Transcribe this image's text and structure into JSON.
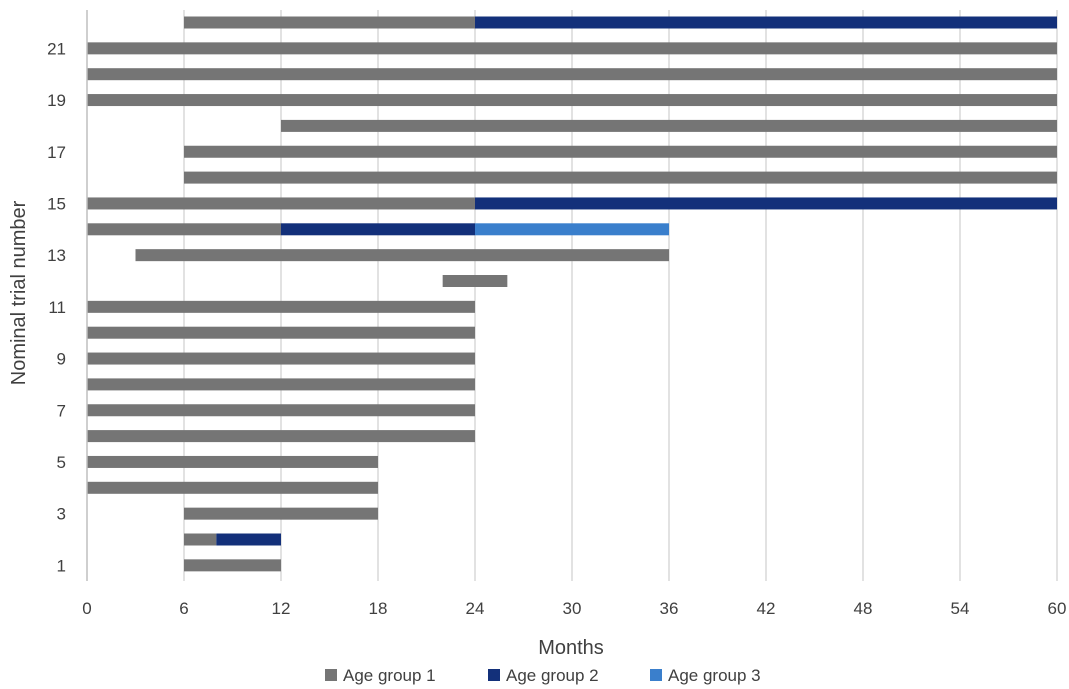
{
  "chart_data": {
    "type": "bar",
    "orientation": "horizontal-stacked-range",
    "xlabel": "Months",
    "ylabel": "Nominal trial number",
    "xlim": [
      0,
      60
    ],
    "xticks": [
      0,
      6,
      12,
      18,
      24,
      30,
      36,
      42,
      48,
      54,
      60
    ],
    "ylim": [
      1,
      22
    ],
    "yticks": [
      1,
      3,
      5,
      7,
      9,
      11,
      13,
      15,
      17,
      19,
      21
    ],
    "grid": "vertical",
    "legend_position": "bottom",
    "series": [
      {
        "name": "Age group 1",
        "color": "#757575"
      },
      {
        "name": "Age group 2",
        "color": "#13307a"
      },
      {
        "name": "Age group 3",
        "color": "#3a7fcc"
      }
    ],
    "trials": [
      {
        "trial": 1,
        "segments": [
          {
            "group": 0,
            "start": 6,
            "end": 12
          }
        ]
      },
      {
        "trial": 2,
        "segments": [
          {
            "group": 0,
            "start": 6,
            "end": 8
          },
          {
            "group": 1,
            "start": 8,
            "end": 12
          }
        ]
      },
      {
        "trial": 3,
        "segments": [
          {
            "group": 0,
            "start": 6,
            "end": 18
          }
        ]
      },
      {
        "trial": 4,
        "segments": [
          {
            "group": 0,
            "start": 0,
            "end": 18
          }
        ]
      },
      {
        "trial": 5,
        "segments": [
          {
            "group": 0,
            "start": 0,
            "end": 18
          }
        ]
      },
      {
        "trial": 6,
        "segments": [
          {
            "group": 0,
            "start": 0,
            "end": 24
          }
        ]
      },
      {
        "trial": 7,
        "segments": [
          {
            "group": 0,
            "start": 0,
            "end": 24
          }
        ]
      },
      {
        "trial": 8,
        "segments": [
          {
            "group": 0,
            "start": 0,
            "end": 24
          }
        ]
      },
      {
        "trial": 9,
        "segments": [
          {
            "group": 0,
            "start": 0,
            "end": 24
          }
        ]
      },
      {
        "trial": 10,
        "segments": [
          {
            "group": 0,
            "start": 0,
            "end": 24
          }
        ]
      },
      {
        "trial": 11,
        "segments": [
          {
            "group": 0,
            "start": 0,
            "end": 24
          }
        ]
      },
      {
        "trial": 12,
        "segments": [
          {
            "group": 0,
            "start": 22,
            "end": 26
          }
        ]
      },
      {
        "trial": 13,
        "segments": [
          {
            "group": 0,
            "start": 3,
            "end": 36
          }
        ]
      },
      {
        "trial": 14,
        "segments": [
          {
            "group": 0,
            "start": 0,
            "end": 12
          },
          {
            "group": 1,
            "start": 12,
            "end": 24
          },
          {
            "group": 2,
            "start": 24,
            "end": 36
          }
        ]
      },
      {
        "trial": 15,
        "segments": [
          {
            "group": 0,
            "start": 0,
            "end": 24
          },
          {
            "group": 1,
            "start": 24,
            "end": 60
          }
        ]
      },
      {
        "trial": 16,
        "segments": [
          {
            "group": 0,
            "start": 6,
            "end": 60
          }
        ]
      },
      {
        "trial": 17,
        "segments": [
          {
            "group": 0,
            "start": 6,
            "end": 60
          }
        ]
      },
      {
        "trial": 18,
        "segments": [
          {
            "group": 0,
            "start": 12,
            "end": 60
          }
        ]
      },
      {
        "trial": 19,
        "segments": [
          {
            "group": 0,
            "start": 0,
            "end": 60
          }
        ]
      },
      {
        "trial": 20,
        "segments": [
          {
            "group": 0,
            "start": 0,
            "end": 60
          }
        ]
      },
      {
        "trial": 21,
        "segments": [
          {
            "group": 0,
            "start": 0,
            "end": 60
          }
        ]
      },
      {
        "trial": 22,
        "segments": [
          {
            "group": 0,
            "start": 6,
            "end": 24
          },
          {
            "group": 1,
            "start": 24,
            "end": 60
          }
        ]
      }
    ]
  }
}
